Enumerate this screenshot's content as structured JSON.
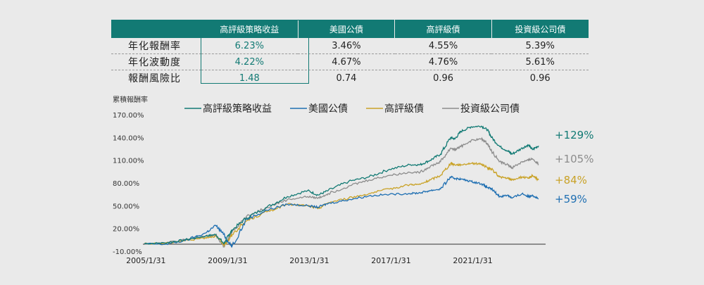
{
  "stats_table": {
    "headers": [
      "",
      "高評級策略收益",
      "美國公債",
      "高評級債",
      "投資級公司債"
    ],
    "rows": [
      {
        "label": "年化報酬率",
        "values": [
          "6.23%",
          "3.46%",
          "4.55%",
          "5.39%"
        ]
      },
      {
        "label": "年化波動度",
        "values": [
          "4.22%",
          "4.67%",
          "4.76%",
          "5.61%"
        ]
      },
      {
        "label": "報酬風險比",
        "values": [
          "1.48",
          "0.74",
          "0.96",
          "0.96"
        ]
      }
    ]
  },
  "chart_data": {
    "type": "line",
    "ylabel": "累積報酬率",
    "ylim": [
      -10,
      170
    ],
    "y_ticks": [
      "170.00%",
      "140.00%",
      "110.00%",
      "80.00%",
      "50.00%",
      "20.00%",
      "-10.00%"
    ],
    "y_tick_values": [
      170,
      140,
      110,
      80,
      50,
      20,
      -10
    ],
    "x_ticks": [
      "2005/1/31",
      "2009/1/31",
      "2013/1/31",
      "2017/1/31",
      "2021/1/31"
    ],
    "x_tick_years": [
      2005.08,
      2009.08,
      2013.08,
      2017.08,
      2021.08
    ],
    "xlim": [
      2005.0,
      2024.3
    ],
    "legend_position": "top",
    "x": [
      2005.0,
      2006.0,
      2007.0,
      2008.0,
      2008.5,
      2008.9,
      2009.1,
      2009.3,
      2010.0,
      2011.0,
      2012.0,
      2013.0,
      2013.5,
      2014.0,
      2015.0,
      2016.0,
      2017.0,
      2018.0,
      2018.5,
      2019.0,
      2019.5,
      2020.0,
      2020.2,
      2020.5,
      2021.0,
      2021.5,
      2021.8,
      2022.0,
      2022.4,
      2022.8,
      2023.0,
      2023.5,
      2023.8,
      2024.0,
      2024.3
    ],
    "series": [
      {
        "name": "高評級策略收益",
        "color": "#127a74",
        "end_label": "+129%",
        "values": [
          0,
          1,
          5,
          10,
          12,
          0,
          10,
          18,
          34,
          48,
          62,
          70,
          64,
          70,
          82,
          88,
          98,
          104,
          104,
          110,
          118,
          140,
          138,
          148,
          154,
          155,
          150,
          140,
          128,
          122,
          118,
          126,
          130,
          124,
          129
        ]
      },
      {
        "name": "美國公債",
        "color": "#1f6fb2",
        "end_label": "+59%",
        "values": [
          0,
          -1,
          4,
          14,
          24,
          12,
          2,
          -3,
          32,
          44,
          52,
          50,
          48,
          53,
          58,
          63,
          65,
          66,
          67,
          70,
          72,
          88,
          86,
          85,
          82,
          79,
          74,
          72,
          62,
          64,
          60,
          66,
          62,
          64,
          59
        ]
      },
      {
        "name": "高評級債",
        "color": "#c9a227",
        "end_label": "+84%",
        "values": [
          0,
          0,
          4,
          8,
          10,
          -2,
          4,
          12,
          30,
          42,
          52,
          50,
          46,
          54,
          60,
          66,
          72,
          78,
          78,
          84,
          90,
          106,
          104,
          104,
          106,
          105,
          100,
          98,
          88,
          86,
          84,
          88,
          86,
          90,
          84
        ]
      },
      {
        "name": "投資級公司債",
        "color": "#8c8c8c",
        "end_label": "+105%",
        "values": [
          0,
          1,
          5,
          10,
          11,
          -4,
          6,
          16,
          36,
          48,
          58,
          62,
          60,
          66,
          76,
          84,
          90,
          94,
          94,
          102,
          108,
          126,
          124,
          128,
          136,
          138,
          132,
          122,
          108,
          104,
          100,
          108,
          110,
          112,
          105
        ]
      }
    ]
  }
}
